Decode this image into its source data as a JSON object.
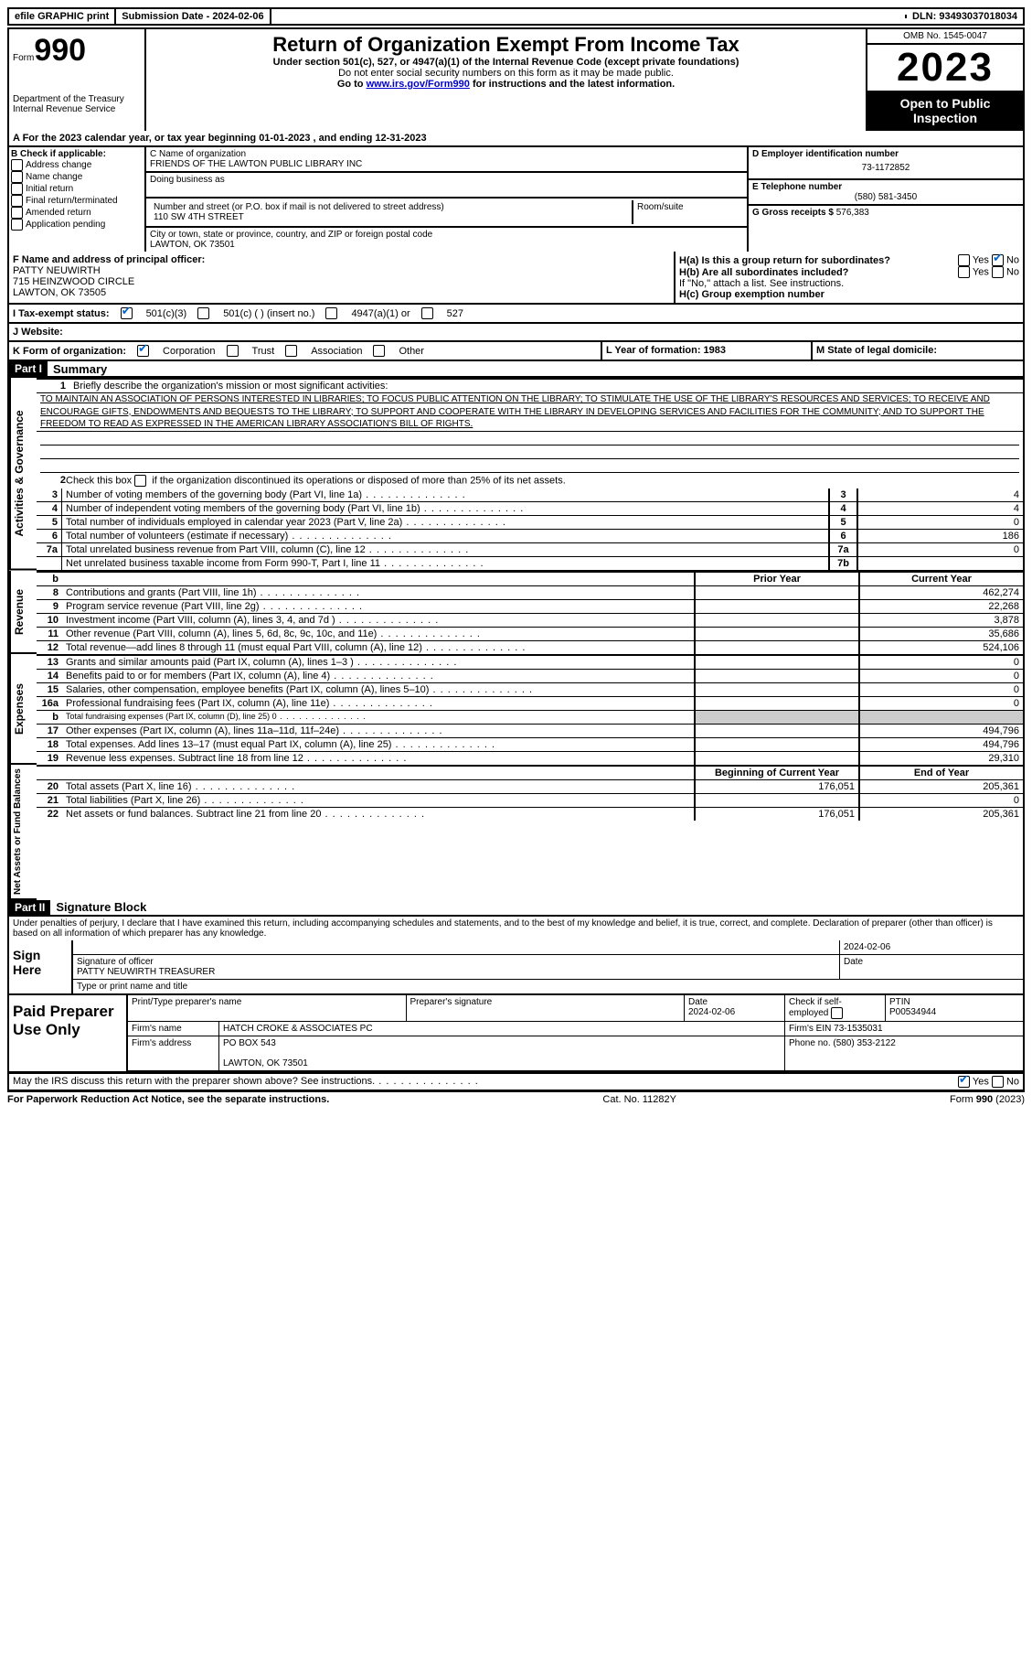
{
  "topbar": {
    "efile": "efile GRAPHIC print",
    "sub_label": "Submission Date - 2024-02-06",
    "dln": "DLN: 93493037018034"
  },
  "header": {
    "form": "Form",
    "form_num": "990",
    "dept": "Department of the Treasury Internal Revenue Service",
    "title": "Return of Organization Exempt From Income Tax",
    "sub1": "Under section 501(c), 527, or 4947(a)(1) of the Internal Revenue Code (except private foundations)",
    "sub2": "Do not enter social security numbers on this form as it may be made public.",
    "sub3_pre": "Go to ",
    "sub3_link": "www.irs.gov/Form990",
    "sub3_post": " for instructions and the latest information.",
    "omb": "OMB No. 1545-0047",
    "year": "2023",
    "open": "Open to Public Inspection"
  },
  "A": {
    "text": "A For the 2023 calendar year, or tax year beginning 01-01-2023    , and ending 12-31-2023"
  },
  "B": {
    "label": "B Check if applicable:",
    "opts": [
      "Address change",
      "Name change",
      "Initial return",
      "Final return/terminated",
      "Amended return",
      "Application pending"
    ]
  },
  "C": {
    "name_label": "C Name of organization",
    "name": "FRIENDS OF THE LAWTON PUBLIC LIBRARY INC",
    "dba_label": "Doing business as",
    "street_label": "Number and street (or P.O. box if mail is not delivered to street address)",
    "street": "110 SW 4TH STREET",
    "room_label": "Room/suite",
    "city_label": "City or town, state or province, country, and ZIP or foreign postal code",
    "city": "LAWTON, OK  73501"
  },
  "D": {
    "label": "D Employer identification number",
    "val": "73-1172852"
  },
  "E": {
    "label": "E Telephone number",
    "val": "(580) 581-3450"
  },
  "G": {
    "label": "G Gross receipts $",
    "val": "576,383"
  },
  "F": {
    "label": "F  Name and address of principal officer:",
    "name": "PATTY NEUWIRTH",
    "addr1": "715 HEINZWOOD CIRCLE",
    "addr2": "LAWTON, OK  73505"
  },
  "H": {
    "a": "H(a)  Is this a group return for subordinates?",
    "b": "H(b)  Are all subordinates included?",
    "b_note": "If \"No,\" attach a list. See instructions.",
    "c": "H(c)  Group exemption number",
    "yes": "Yes",
    "no": "No"
  },
  "I": {
    "label": "I    Tax-exempt status:",
    "o1": "501(c)(3)",
    "o2": "501(c) (  ) (insert no.)",
    "o3": "4947(a)(1) or",
    "o4": "527"
  },
  "J": {
    "label": "J    Website:"
  },
  "K": {
    "label": "K Form of organization:",
    "o1": "Corporation",
    "o2": "Trust",
    "o3": "Association",
    "o4": "Other"
  },
  "L": {
    "label": "L Year of formation: 1983"
  },
  "M": {
    "label": "M State of legal domicile:"
  },
  "part1": {
    "tag": "Part I",
    "title": "Summary"
  },
  "q1": {
    "label": "Briefly describe the organization's mission or most significant activities:",
    "text": "TO MAINTAIN AN ASSOCIATION OF PERSONS INTERESTED IN LIBRARIES; TO FOCUS PUBLIC ATTENTION ON THE LIBRARY; TO STIMULATE THE USE OF THE LIBRARY'S RESOURCES AND SERVICES; TO RECEIVE AND ENCOURAGE GIFTS, ENDOWMENTS AND BEQUESTS TO THE LIBRARY; TO SUPPORT AND COOPERATE WITH THE LIBRARY IN DEVELOPING SERVICES AND FACILITIES FOR THE COMMUNITY; AND TO SUPPORT THE FREEDOM TO READ AS EXPRESSED IN THE AMERICAN LIBRARY ASSOCIATION'S BILL OF RIGHTS."
  },
  "q2_pre": "Check this box ",
  "q2_post": " if the organization discontinued its operations or disposed of more than 25% of its net assets.",
  "lines_gov": [
    {
      "n": "3",
      "d": "Number of voting members of the governing body (Part VI, line 1a)",
      "r": "3",
      "v": "4"
    },
    {
      "n": "4",
      "d": "Number of independent voting members of the governing body (Part VI, line 1b)",
      "r": "4",
      "v": "4"
    },
    {
      "n": "5",
      "d": "Total number of individuals employed in calendar year 2023 (Part V, line 2a)",
      "r": "5",
      "v": "0"
    },
    {
      "n": "6",
      "d": "Total number of volunteers (estimate if necessary)",
      "r": "6",
      "v": "186"
    },
    {
      "n": "7a",
      "d": "Total unrelated business revenue from Part VIII, column (C), line 12",
      "r": "7a",
      "v": "0"
    },
    {
      "n": "",
      "d": "Net unrelated business taxable income from Form 990-T, Part I, line 11",
      "r": "7b",
      "v": ""
    }
  ],
  "col_hdrs": {
    "b": "b",
    "prior": "Prior Year",
    "current": "Current Year"
  },
  "lines_rev": [
    {
      "n": "8",
      "d": "Contributions and grants (Part VIII, line 1h)",
      "p": "",
      "c": "462,274"
    },
    {
      "n": "9",
      "d": "Program service revenue (Part VIII, line 2g)",
      "p": "",
      "c": "22,268"
    },
    {
      "n": "10",
      "d": "Investment income (Part VIII, column (A), lines 3, 4, and 7d )",
      "p": "",
      "c": "3,878"
    },
    {
      "n": "11",
      "d": "Other revenue (Part VIII, column (A), lines 5, 6d, 8c, 9c, 10c, and 11e)",
      "p": "",
      "c": "35,686"
    },
    {
      "n": "12",
      "d": "Total revenue—add lines 8 through 11 (must equal Part VIII, column (A), line 12)",
      "p": "",
      "c": "524,106"
    }
  ],
  "lines_exp": [
    {
      "n": "13",
      "d": "Grants and similar amounts paid (Part IX, column (A), lines 1–3 )",
      "p": "",
      "c": "0"
    },
    {
      "n": "14",
      "d": "Benefits paid to or for members (Part IX, column (A), line 4)",
      "p": "",
      "c": "0"
    },
    {
      "n": "15",
      "d": "Salaries, other compensation, employee benefits (Part IX, column (A), lines 5–10)",
      "p": "",
      "c": "0"
    },
    {
      "n": "16a",
      "d": "Professional fundraising fees (Part IX, column (A), line 11e)",
      "p": "",
      "c": "0"
    },
    {
      "n": "b",
      "d": "Total fundraising expenses (Part IX, column (D), line 25) 0",
      "p": "SHADE",
      "c": "SHADE"
    },
    {
      "n": "17",
      "d": "Other expenses (Part IX, column (A), lines 11a–11d, 11f–24e)",
      "p": "",
      "c": "494,796"
    },
    {
      "n": "18",
      "d": "Total expenses. Add lines 13–17 (must equal Part IX, column (A), line 25)",
      "p": "",
      "c": "494,796"
    },
    {
      "n": "19",
      "d": "Revenue less expenses. Subtract line 18 from line 12",
      "p": "",
      "c": "29,310"
    }
  ],
  "col_hdrs2": {
    "boy": "Beginning of Current Year",
    "eoy": "End of Year"
  },
  "lines_net": [
    {
      "n": "20",
      "d": "Total assets (Part X, line 16)",
      "p": "176,051",
      "c": "205,361"
    },
    {
      "n": "21",
      "d": "Total liabilities (Part X, line 26)",
      "p": "",
      "c": "0"
    },
    {
      "n": "22",
      "d": "Net assets or fund balances. Subtract line 21 from line 20",
      "p": "176,051",
      "c": "205,361"
    }
  ],
  "vlabels": {
    "gov": "Activities & Governance",
    "rev": "Revenue",
    "exp": "Expenses",
    "net": "Net Assets or Fund Balances"
  },
  "part2": {
    "tag": "Part II",
    "title": "Signature Block"
  },
  "decl": "Under penalties of perjury, I declare that I have examined this return, including accompanying schedules and statements, and to the best of my knowledge and belief, it is true, correct, and complete. Declaration of preparer (other than officer) is based on all information of which preparer has any knowledge.",
  "sign": {
    "lbl": "Sign Here",
    "date": "2024-02-06",
    "sig_lbl": "Signature of officer",
    "date_lbl": "Date",
    "name": "PATTY NEUWIRTH  TREASURER",
    "name_lbl": "Type or print name and title"
  },
  "prep": {
    "lbl": "Paid Preparer Use Only",
    "h1": "Print/Type preparer's name",
    "h2": "Preparer's signature",
    "h3": "Date",
    "h3v": "2024-02-06",
    "h4": "Check         if self-employed",
    "h5": "PTIN",
    "h5v": "P00534944",
    "firm_lbl": "Firm's name",
    "firm": "HATCH CROKE & ASSOCIATES PC",
    "ein_lbl": "Firm's EIN",
    "ein": "73-1535031",
    "addr_lbl": "Firm's address",
    "addr1": "PO BOX 543",
    "addr2": "LAWTON, OK  73501",
    "phone_lbl": "Phone no.",
    "phone": "(580) 353-2122"
  },
  "irs_q": "May the IRS discuss this return with the preparer shown above? See instructions.",
  "footer": {
    "left": "For Paperwork Reduction Act Notice, see the separate instructions.",
    "mid": "Cat. No. 11282Y",
    "right_pre": "Form ",
    "right_b": "990",
    "right_post": " (2023)"
  }
}
